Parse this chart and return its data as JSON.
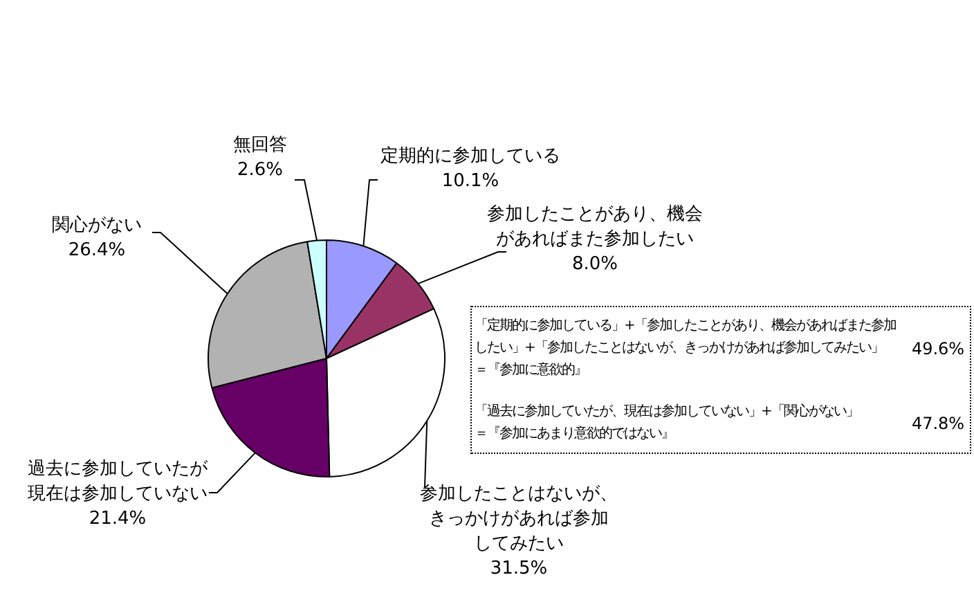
{
  "chart_data": {
    "type": "pie",
    "categories": [
      "定期的に参加している",
      "参加したことがあり、機会があればまた参加したい",
      "参加したことはないが、きっかけがあれば参加してみたい",
      "過去に参加していたが現在は参加していない",
      "関心がない",
      "無回答"
    ],
    "values": [
      10.1,
      8.0,
      31.5,
      21.4,
      26.4,
      2.6
    ],
    "colors": [
      "#9999ff",
      "#993366",
      "#ffffff",
      "#660066",
      "#b2b2b2",
      "#ccffff"
    ],
    "value_labels": [
      "10.1%",
      "8.0%",
      "31.5%",
      "21.4%",
      "26.4%",
      "2.6%"
    ],
    "annotations": [
      "「定期的に参加している」+「参加したことがあり、機会があればまた参加したい」+「参加したことはないが、きっかけがあれば参加してみたい」",
      "＝『参加に意欲的』",
      "49.6%",
      "「過去に参加していたが、現在は参加していない」+「関心がない」",
      "＝『参加にあまり意欲的ではない』",
      "47.8%"
    ]
  }
}
